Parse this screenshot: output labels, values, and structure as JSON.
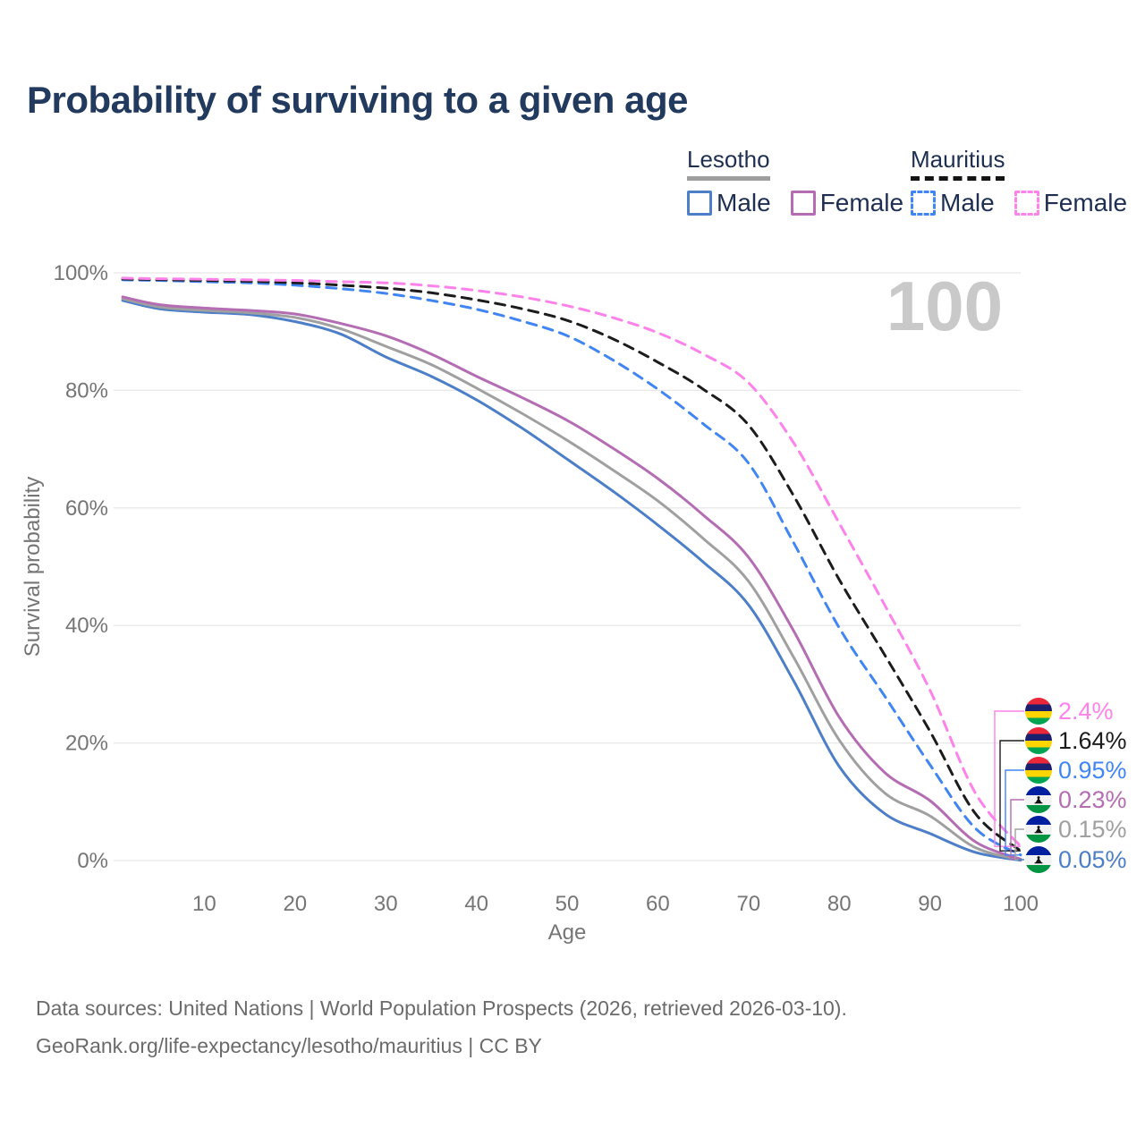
{
  "title": "Probability of surviving to a given age",
  "hover_age_annotation": "100",
  "legend": {
    "groups": [
      {
        "name": "Lesotho",
        "line_style": "solid",
        "underline_color": "#9e9e9e",
        "items": [
          {
            "label": "Male",
            "color": "#4d7ec8"
          },
          {
            "label": "Female",
            "color": "#b46db3"
          }
        ]
      },
      {
        "name": "Mauritius",
        "line_style": "dashed",
        "underline_color": "#141414",
        "items": [
          {
            "label": "Male",
            "color": "#4185f3"
          },
          {
            "label": "Female",
            "color": "#fd82ea"
          }
        ]
      }
    ]
  },
  "chart_data": {
    "type": "line",
    "title": "Probability of surviving to a given age",
    "xlabel": "Age",
    "ylabel": "Survival probability",
    "xlim": [
      1,
      100
    ],
    "ylim": [
      0,
      100
    ],
    "grid": "horizontal-only",
    "grid_color": "#e8e8e8",
    "x_ticks": [
      10,
      20,
      30,
      40,
      50,
      60,
      70,
      80,
      90,
      100
    ],
    "y_tick_values": [
      0,
      20,
      40,
      60,
      80,
      100
    ],
    "y_tick_labels": [
      "0%",
      "20%",
      "40%",
      "60%",
      "80%",
      "100%"
    ],
    "x": [
      1,
      5,
      10,
      15,
      20,
      25,
      30,
      35,
      40,
      45,
      50,
      55,
      60,
      65,
      70,
      75,
      80,
      85,
      90,
      95,
      100
    ],
    "series": [
      {
        "name": "Mauritius Female",
        "country": "mauritius",
        "sex": "female",
        "color": "#fd82ea",
        "dash": true,
        "end_label": "2.4%",
        "values": [
          99.1,
          99.0,
          98.9,
          98.8,
          98.7,
          98.5,
          98.3,
          97.8,
          97.0,
          95.9,
          94.4,
          92.4,
          89.8,
          86.2,
          81.3,
          71.0,
          57.4,
          43.5,
          29.0,
          11.5,
          2.4
        ]
      },
      {
        "name": "Mauritius Both sexes",
        "country": "mauritius",
        "sex": "both",
        "color": "#1c1c1c",
        "dash": true,
        "end_label": "1.64%",
        "values": [
          98.95,
          98.85,
          98.7,
          98.55,
          98.3,
          97.9,
          97.4,
          96.6,
          95.4,
          93.9,
          91.9,
          88.8,
          84.8,
          80.2,
          74.1,
          62.0,
          47.8,
          35.0,
          22.0,
          8.0,
          1.64
        ]
      },
      {
        "name": "Mauritius Male",
        "country": "mauritius",
        "sex": "male",
        "color": "#4185f3",
        "dash": true,
        "end_label": "0.95%",
        "values": [
          98.8,
          98.7,
          98.5,
          98.3,
          97.9,
          97.3,
          96.5,
          95.3,
          93.8,
          91.8,
          89.3,
          85.2,
          80.2,
          74.3,
          67.6,
          54.0,
          39.6,
          28.0,
          16.3,
          5.5,
          0.95
        ]
      },
      {
        "name": "Lesotho Female",
        "country": "lesotho",
        "sex": "female",
        "color": "#b46db3",
        "dash": false,
        "end_label": "0.23%",
        "values": [
          95.9,
          94.6,
          94.0,
          93.6,
          93.0,
          91.4,
          89.3,
          86.2,
          82.4,
          78.8,
          74.9,
          70.2,
          65.0,
          58.8,
          51.6,
          39.0,
          24.4,
          15.0,
          10.2,
          3.2,
          0.23
        ]
      },
      {
        "name": "Lesotho Both sexes",
        "country": "lesotho",
        "sex": "both",
        "color": "#a0a0a0",
        "dash": false,
        "end_label": "0.15%",
        "values": [
          95.6,
          94.2,
          93.6,
          93.2,
          92.4,
          90.5,
          87.5,
          84.4,
          80.4,
          76.1,
          71.5,
          66.5,
          61.2,
          54.8,
          47.5,
          34.5,
          20.5,
          11.5,
          7.6,
          2.2,
          0.15
        ]
      },
      {
        "name": "Lesotho Male",
        "country": "lesotho",
        "sex": "male",
        "color": "#4d7ec8",
        "dash": false,
        "end_label": "0.05%",
        "values": [
          95.3,
          93.9,
          93.3,
          92.9,
          91.7,
          89.6,
          85.7,
          82.4,
          78.4,
          73.6,
          68.3,
          62.9,
          57.1,
          50.8,
          43.5,
          30.5,
          16.0,
          8.0,
          4.6,
          1.4,
          0.05
        ]
      }
    ],
    "legend_position": "top-right"
  },
  "flags": {
    "mauritius": {
      "stripes": [
        "#EA2839",
        "#1A206D",
        "#FFD500",
        "#00A551"
      ]
    },
    "lesotho": {
      "top": "#00209F",
      "middle": "#F2F2F2",
      "bottom": "#009543",
      "emblem": "#111111"
    }
  },
  "footer": {
    "line1": "Data sources: United Nations | World Population Prospects (2026, retrieved 2026-03-10).",
    "line2": "GeoRank.org/life-expectancy/lesotho/mauritius | CC BY"
  },
  "colors": {
    "title": "#223a5e",
    "legend_text": "#1e2f52",
    "axis_text": "#757575",
    "gridline": "#e8e8e8",
    "watermark": "#c9c9c9",
    "footer_text": "#6b6b6b"
  }
}
